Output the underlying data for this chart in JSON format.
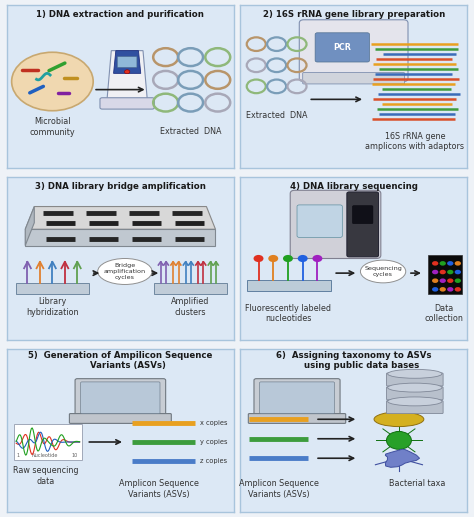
{
  "bg_color": "#eef2f7",
  "panel_color": "#dce8f5",
  "panel_edge_color": "#a8c4dc",
  "title_color": "#1a1a1a",
  "text_color": "#333333",
  "titles": [
    "1) DNA extraction and purification",
    "2) 16S rRNA gene library preparation",
    "3) DNA library bridge amplification",
    "4) DNA library sequencing",
    "5)  Generation of Ampilicon Sequence\n     Variants (ASVs)",
    "6)  Assigning taxonomy to ASVs\n     using public data bases"
  ],
  "ring_colors": [
    "#b8956a",
    "#7a9db8",
    "#8fb87a",
    "#a8a8b8",
    "#7a9db8",
    "#b8956a",
    "#8fb87a",
    "#7a9db8",
    "#a8a8b8"
  ],
  "amp_colors": [
    "#e8a020",
    "#3d9c3d",
    "#3a6cb8",
    "#d94f2a"
  ],
  "asv_colors": [
    "#e8a020",
    "#3d9c3d",
    "#4a7cc8"
  ],
  "fluor_colors": [
    "#e03020",
    "#e08020",
    "#20a020",
    "#2060e0",
    "#a020c0"
  ],
  "label_fontsize": 5.8,
  "title_fontsize": 6.2
}
